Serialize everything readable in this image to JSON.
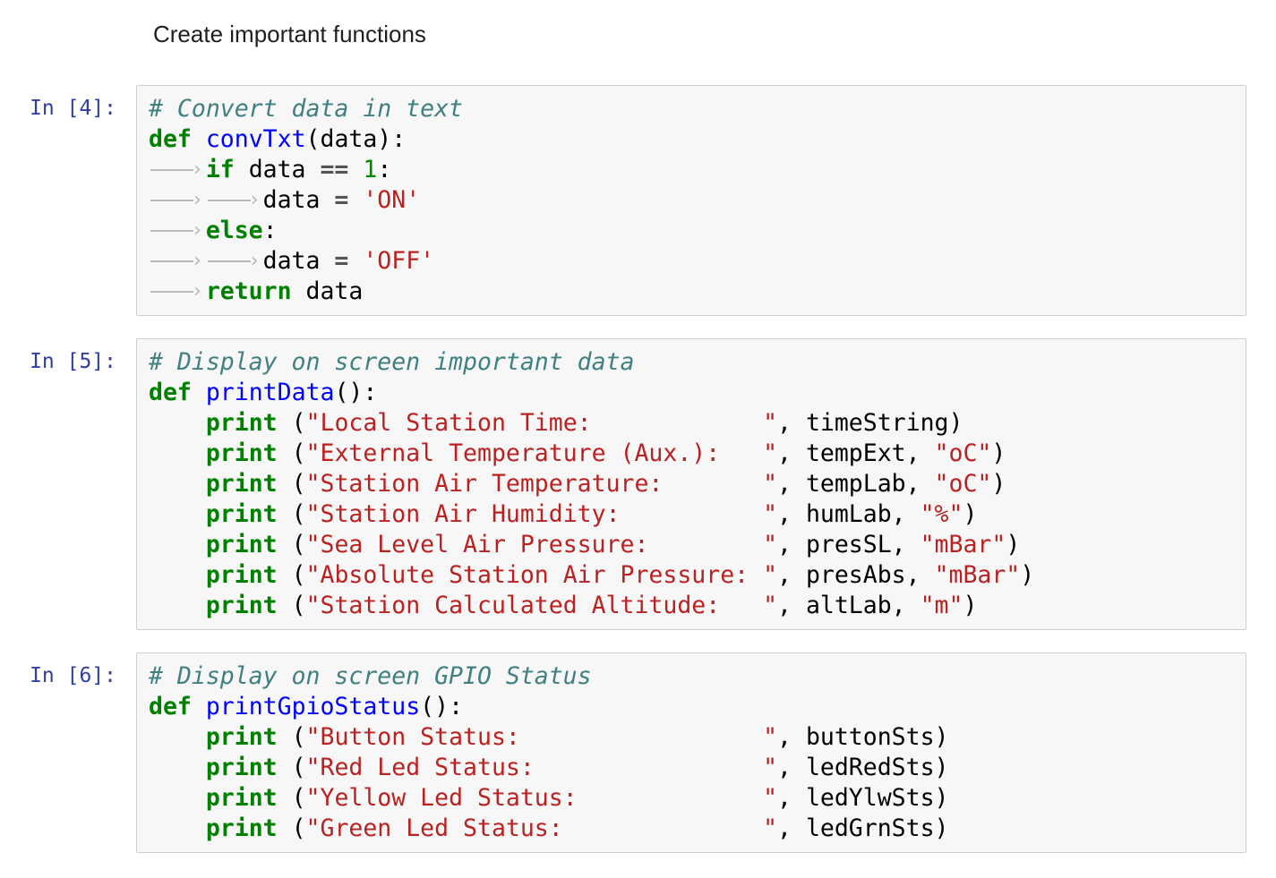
{
  "colors": {
    "page-bg": "#ffffff",
    "prompt": "#303F9F",
    "cell-bg": "#f7f7f7",
    "cell-border": "#cfcfcf",
    "comment": "#408080",
    "keyword": "#008000",
    "defname": "#0000ff",
    "string": "#BA2121",
    "number": "#008800",
    "operator": "#555555",
    "tabmark": "#b8b8b8",
    "code-text": "#000000",
    "markdown-text": "#1f1f1f"
  },
  "markdown": {
    "text": "Create important functions"
  },
  "cells": [
    {
      "prompt": "In [4]:",
      "lines": [
        [
          {
            "t": "com",
            "v": "# Convert data in text"
          }
        ],
        [
          {
            "t": "kw",
            "v": "def"
          },
          {
            "t": "pl",
            "v": " "
          },
          {
            "t": "fn",
            "v": "convTxt"
          },
          {
            "t": "pl",
            "v": "(data):"
          }
        ],
        [
          {
            "t": "tab"
          },
          {
            "t": "kw",
            "v": "if"
          },
          {
            "t": "pl",
            "v": " data "
          },
          {
            "t": "op",
            "v": "=="
          },
          {
            "t": "pl",
            "v": " "
          },
          {
            "t": "num",
            "v": "1"
          },
          {
            "t": "pl",
            "v": ":"
          }
        ],
        [
          {
            "t": "tab"
          },
          {
            "t": "tab"
          },
          {
            "t": "pl",
            "v": "data "
          },
          {
            "t": "op",
            "v": "="
          },
          {
            "t": "pl",
            "v": " "
          },
          {
            "t": "str",
            "v": "'ON'"
          }
        ],
        [
          {
            "t": "tab"
          },
          {
            "t": "kw",
            "v": "else"
          },
          {
            "t": "pl",
            "v": ":"
          }
        ],
        [
          {
            "t": "tab"
          },
          {
            "t": "tab"
          },
          {
            "t": "pl",
            "v": "data "
          },
          {
            "t": "op",
            "v": "="
          },
          {
            "t": "pl",
            "v": " "
          },
          {
            "t": "str",
            "v": "'OFF'"
          }
        ],
        [
          {
            "t": "tab"
          },
          {
            "t": "kw",
            "v": "return"
          },
          {
            "t": "pl",
            "v": " data"
          }
        ]
      ]
    },
    {
      "prompt": "In [5]:",
      "lines": [
        [
          {
            "t": "com",
            "v": "# Display on screen important data"
          }
        ],
        [
          {
            "t": "kw",
            "v": "def"
          },
          {
            "t": "pl",
            "v": " "
          },
          {
            "t": "fn",
            "v": "printData"
          },
          {
            "t": "pl",
            "v": "():"
          }
        ],
        [
          {
            "t": "pl",
            "v": "    "
          },
          {
            "t": "kw",
            "v": "print"
          },
          {
            "t": "pl",
            "v": " ("
          },
          {
            "t": "str",
            "v": "\"Local Station Time:            \""
          },
          {
            "t": "pl",
            "v": ", timeString)"
          }
        ],
        [
          {
            "t": "pl",
            "v": "    "
          },
          {
            "t": "kw",
            "v": "print"
          },
          {
            "t": "pl",
            "v": " ("
          },
          {
            "t": "str",
            "v": "\"External Temperature (Aux.):   \""
          },
          {
            "t": "pl",
            "v": ", tempExt, "
          },
          {
            "t": "str",
            "v": "\"oC\""
          },
          {
            "t": "pl",
            "v": ")"
          }
        ],
        [
          {
            "t": "pl",
            "v": "    "
          },
          {
            "t": "kw",
            "v": "print"
          },
          {
            "t": "pl",
            "v": " ("
          },
          {
            "t": "str",
            "v": "\"Station Air Temperature:       \""
          },
          {
            "t": "pl",
            "v": ", tempLab, "
          },
          {
            "t": "str",
            "v": "\"oC\""
          },
          {
            "t": "pl",
            "v": ")"
          }
        ],
        [
          {
            "t": "pl",
            "v": "    "
          },
          {
            "t": "kw",
            "v": "print"
          },
          {
            "t": "pl",
            "v": " ("
          },
          {
            "t": "str",
            "v": "\"Station Air Humidity:          \""
          },
          {
            "t": "pl",
            "v": ", humLab, "
          },
          {
            "t": "str",
            "v": "\"%\""
          },
          {
            "t": "pl",
            "v": ")"
          }
        ],
        [
          {
            "t": "pl",
            "v": "    "
          },
          {
            "t": "kw",
            "v": "print"
          },
          {
            "t": "pl",
            "v": " ("
          },
          {
            "t": "str",
            "v": "\"Sea Level Air Pressure:        \""
          },
          {
            "t": "pl",
            "v": ", presSL, "
          },
          {
            "t": "str",
            "v": "\"mBar\""
          },
          {
            "t": "pl",
            "v": ")"
          }
        ],
        [
          {
            "t": "pl",
            "v": "    "
          },
          {
            "t": "kw",
            "v": "print"
          },
          {
            "t": "pl",
            "v": " ("
          },
          {
            "t": "str",
            "v": "\"Absolute Station Air Pressure: \""
          },
          {
            "t": "pl",
            "v": ", presAbs, "
          },
          {
            "t": "str",
            "v": "\"mBar\""
          },
          {
            "t": "pl",
            "v": ")"
          }
        ],
        [
          {
            "t": "pl",
            "v": "    "
          },
          {
            "t": "kw",
            "v": "print"
          },
          {
            "t": "pl",
            "v": " ("
          },
          {
            "t": "str",
            "v": "\"Station Calculated Altitude:   \""
          },
          {
            "t": "pl",
            "v": ", altLab, "
          },
          {
            "t": "str",
            "v": "\"m\""
          },
          {
            "t": "pl",
            "v": ")"
          }
        ]
      ]
    },
    {
      "prompt": "In [6]:",
      "lines": [
        [
          {
            "t": "com",
            "v": "# Display on screen GPIO Status"
          }
        ],
        [
          {
            "t": "kw",
            "v": "def"
          },
          {
            "t": "pl",
            "v": " "
          },
          {
            "t": "fn",
            "v": "printGpioStatus"
          },
          {
            "t": "pl",
            "v": "():"
          }
        ],
        [
          {
            "t": "pl",
            "v": "    "
          },
          {
            "t": "kw",
            "v": "print"
          },
          {
            "t": "pl",
            "v": " ("
          },
          {
            "t": "str",
            "v": "\"Button Status:                 \""
          },
          {
            "t": "pl",
            "v": ", buttonSts)"
          }
        ],
        [
          {
            "t": "pl",
            "v": "    "
          },
          {
            "t": "kw",
            "v": "print"
          },
          {
            "t": "pl",
            "v": " ("
          },
          {
            "t": "str",
            "v": "\"Red Led Status:                \""
          },
          {
            "t": "pl",
            "v": ", ledRedSts)"
          }
        ],
        [
          {
            "t": "pl",
            "v": "    "
          },
          {
            "t": "kw",
            "v": "print"
          },
          {
            "t": "pl",
            "v": " ("
          },
          {
            "t": "str",
            "v": "\"Yellow Led Status:             \""
          },
          {
            "t": "pl",
            "v": ", ledYlwSts)"
          }
        ],
        [
          {
            "t": "pl",
            "v": "    "
          },
          {
            "t": "kw",
            "v": "print"
          },
          {
            "t": "pl",
            "v": " ("
          },
          {
            "t": "str",
            "v": "\"Green Led Status:              \""
          },
          {
            "t": "pl",
            "v": ", ledGrnSts)"
          }
        ]
      ]
    }
  ]
}
